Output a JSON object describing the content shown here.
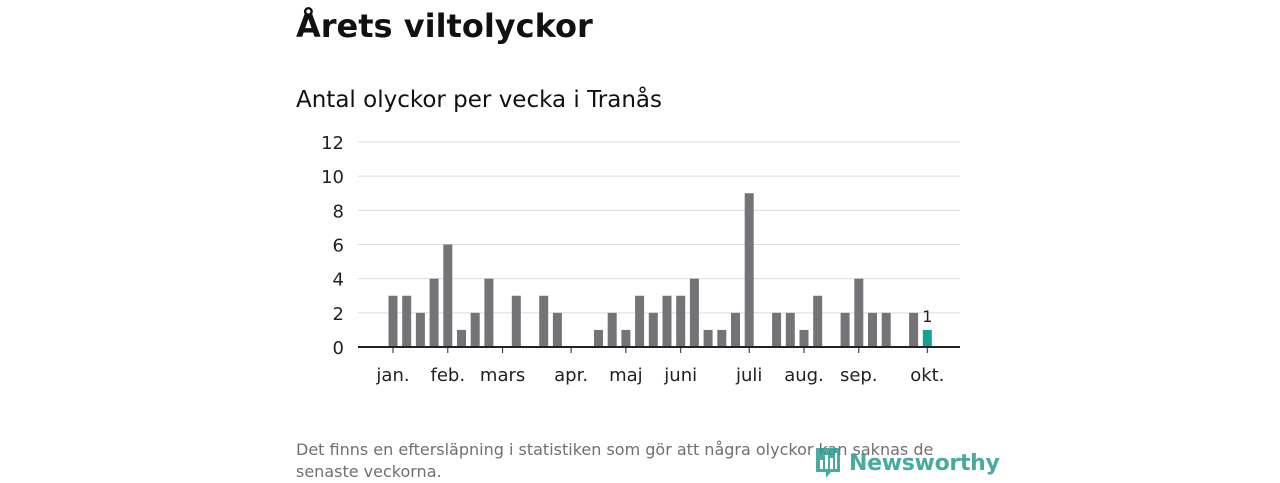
{
  "header": {
    "title": "Årets viltolyckor"
  },
  "footer": {
    "note": "Det finns en eftersläpning i statistiken som gör att några olyckor kan saknas de senaste veckorna.",
    "brand": "Newsworthy"
  },
  "chart_data": {
    "type": "bar",
    "title": "Antal olyckor per vecka i Tranås",
    "xlabel": "",
    "ylabel": "",
    "ylim": [
      0,
      12
    ],
    "yticks": [
      0,
      2,
      4,
      6,
      8,
      10,
      12
    ],
    "grid": true,
    "weeks": [
      1,
      2,
      3,
      4,
      5,
      6,
      7,
      8,
      9,
      10,
      11,
      12,
      13,
      14,
      15,
      16,
      17,
      18,
      19,
      20,
      21,
      22,
      23,
      24,
      25,
      26,
      27,
      28,
      29,
      30,
      31,
      32,
      33,
      34,
      35,
      36,
      37,
      38,
      39,
      40,
      41
    ],
    "values": [
      3,
      3,
      2,
      4,
      6,
      1,
      2,
      4,
      0,
      3,
      0,
      3,
      2,
      0,
      0,
      1,
      2,
      1,
      3,
      2,
      3,
      3,
      4,
      1,
      1,
      2,
      9,
      0,
      2,
      2,
      1,
      3,
      0,
      2,
      4,
      2,
      2,
      0,
      2,
      1,
      null
    ],
    "highlight_week": 40,
    "highlight_label": "1",
    "month_ticks": [
      {
        "label": "jan.",
        "week": 1
      },
      {
        "label": "feb.",
        "week": 5
      },
      {
        "label": "mars",
        "week": 9
      },
      {
        "label": "apr.",
        "week": 14
      },
      {
        "label": "maj",
        "week": 18
      },
      {
        "label": "juni",
        "week": 22
      },
      {
        "label": "juli",
        "week": 27
      },
      {
        "label": "aug.",
        "week": 31
      },
      {
        "label": "sep.",
        "week": 35
      },
      {
        "label": "okt.",
        "week": 40
      }
    ],
    "colors": {
      "bar": "#737378",
      "highlight": "#14a197",
      "grid": "#dcdcdc",
      "axis": "#222222"
    }
  }
}
